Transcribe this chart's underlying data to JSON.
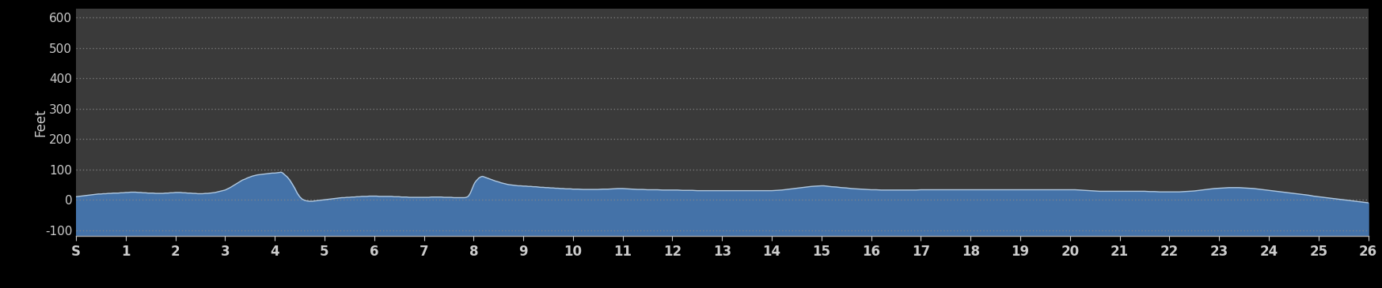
{
  "background_color": "#000000",
  "plot_bg_color": "#3a3a3a",
  "fill_color": "#4472a8",
  "line_color": "#b0c8e0",
  "ylabel": "Feet",
  "xlabel_ticks": [
    "S",
    "1",
    "2",
    "3",
    "4",
    "5",
    "6",
    "7",
    "8",
    "9",
    "10",
    "11",
    "12",
    "13",
    "14",
    "15",
    "16",
    "17",
    "18",
    "19",
    "20",
    "21",
    "22",
    "23",
    "24",
    "25",
    "26"
  ],
  "yticks": [
    -100,
    0,
    100,
    200,
    300,
    400,
    500,
    600
  ],
  "ylim": [
    -120,
    630
  ],
  "xlim": [
    0,
    26
  ],
  "grid_color": "#888888",
  "tick_color": "#cccccc",
  "spine_color": "#aaaaaa",
  "elevation_profile": [
    [
      0.0,
      10
    ],
    [
      0.05,
      11
    ],
    [
      0.1,
      12
    ],
    [
      0.15,
      13
    ],
    [
      0.2,
      14
    ],
    [
      0.25,
      15
    ],
    [
      0.3,
      16
    ],
    [
      0.35,
      17
    ],
    [
      0.4,
      18
    ],
    [
      0.45,
      19
    ],
    [
      0.5,
      19
    ],
    [
      0.55,
      20
    ],
    [
      0.6,
      20
    ],
    [
      0.65,
      21
    ],
    [
      0.7,
      21
    ],
    [
      0.75,
      22
    ],
    [
      0.8,
      22
    ],
    [
      0.85,
      22
    ],
    [
      0.9,
      23
    ],
    [
      0.95,
      23
    ],
    [
      1.0,
      24
    ],
    [
      1.05,
      24
    ],
    [
      1.1,
      25
    ],
    [
      1.15,
      25
    ],
    [
      1.2,
      25
    ],
    [
      1.25,
      24
    ],
    [
      1.3,
      24
    ],
    [
      1.35,
      23
    ],
    [
      1.4,
      23
    ],
    [
      1.45,
      22
    ],
    [
      1.5,
      22
    ],
    [
      1.55,
      22
    ],
    [
      1.6,
      21
    ],
    [
      1.65,
      21
    ],
    [
      1.7,
      21
    ],
    [
      1.75,
      21
    ],
    [
      1.8,
      22
    ],
    [
      1.85,
      22
    ],
    [
      1.9,
      23
    ],
    [
      1.95,
      23
    ],
    [
      2.0,
      24
    ],
    [
      2.05,
      24
    ],
    [
      2.1,
      24
    ],
    [
      2.15,
      23
    ],
    [
      2.2,
      23
    ],
    [
      2.25,
      22
    ],
    [
      2.3,
      22
    ],
    [
      2.35,
      21
    ],
    [
      2.4,
      21
    ],
    [
      2.45,
      20
    ],
    [
      2.5,
      20
    ],
    [
      2.55,
      20
    ],
    [
      2.6,
      21
    ],
    [
      2.65,
      21
    ],
    [
      2.7,
      22
    ],
    [
      2.75,
      23
    ],
    [
      2.8,
      24
    ],
    [
      2.85,
      26
    ],
    [
      2.9,
      28
    ],
    [
      2.95,
      30
    ],
    [
      3.0,
      32
    ],
    [
      3.05,
      36
    ],
    [
      3.1,
      40
    ],
    [
      3.15,
      45
    ],
    [
      3.2,
      50
    ],
    [
      3.25,
      55
    ],
    [
      3.3,
      60
    ],
    [
      3.35,
      65
    ],
    [
      3.4,
      68
    ],
    [
      3.45,
      72
    ],
    [
      3.5,
      75
    ],
    [
      3.55,
      78
    ],
    [
      3.6,
      80
    ],
    [
      3.65,
      82
    ],
    [
      3.7,
      83
    ],
    [
      3.75,
      84
    ],
    [
      3.8,
      85
    ],
    [
      3.85,
      86
    ],
    [
      3.9,
      87
    ],
    [
      3.95,
      88
    ],
    [
      4.0,
      88
    ],
    [
      4.05,
      89
    ],
    [
      4.1,
      90
    ],
    [
      4.12,
      91
    ],
    [
      4.14,
      90
    ],
    [
      4.16,
      88
    ],
    [
      4.18,
      85
    ],
    [
      4.2,
      82
    ],
    [
      4.25,
      75
    ],
    [
      4.3,
      65
    ],
    [
      4.35,
      52
    ],
    [
      4.4,
      38
    ],
    [
      4.45,
      22
    ],
    [
      4.5,
      10
    ],
    [
      4.55,
      2
    ],
    [
      4.6,
      -2
    ],
    [
      4.65,
      -4
    ],
    [
      4.7,
      -5
    ],
    [
      4.75,
      -5
    ],
    [
      4.8,
      -4
    ],
    [
      4.85,
      -3
    ],
    [
      4.9,
      -2
    ],
    [
      4.95,
      -1
    ],
    [
      5.0,
      0
    ],
    [
      5.05,
      1
    ],
    [
      5.1,
      2
    ],
    [
      5.15,
      3
    ],
    [
      5.2,
      4
    ],
    [
      5.25,
      5
    ],
    [
      5.3,
      6
    ],
    [
      5.35,
      7
    ],
    [
      5.4,
      7
    ],
    [
      5.45,
      8
    ],
    [
      5.5,
      8
    ],
    [
      5.55,
      9
    ],
    [
      5.6,
      9
    ],
    [
      5.65,
      10
    ],
    [
      5.7,
      10
    ],
    [
      5.75,
      11
    ],
    [
      5.8,
      11
    ],
    [
      5.85,
      11
    ],
    [
      5.9,
      12
    ],
    [
      5.95,
      12
    ],
    [
      6.0,
      12
    ],
    [
      6.05,
      12
    ],
    [
      6.1,
      11
    ],
    [
      6.15,
      11
    ],
    [
      6.2,
      11
    ],
    [
      6.25,
      11
    ],
    [
      6.3,
      11
    ],
    [
      6.35,
      11
    ],
    [
      6.4,
      10
    ],
    [
      6.45,
      10
    ],
    [
      6.5,
      10
    ],
    [
      6.55,
      9
    ],
    [
      6.6,
      9
    ],
    [
      6.65,
      9
    ],
    [
      6.7,
      8
    ],
    [
      6.75,
      8
    ],
    [
      6.8,
      8
    ],
    [
      6.85,
      8
    ],
    [
      6.9,
      8
    ],
    [
      6.95,
      8
    ],
    [
      7.0,
      8
    ],
    [
      7.05,
      8
    ],
    [
      7.1,
      8
    ],
    [
      7.15,
      9
    ],
    [
      7.2,
      9
    ],
    [
      7.25,
      9
    ],
    [
      7.3,
      9
    ],
    [
      7.35,
      9
    ],
    [
      7.4,
      8
    ],
    [
      7.45,
      8
    ],
    [
      7.5,
      8
    ],
    [
      7.55,
      8
    ],
    [
      7.6,
      7
    ],
    [
      7.65,
      7
    ],
    [
      7.7,
      7
    ],
    [
      7.75,
      7
    ],
    [
      7.8,
      7
    ],
    [
      7.82,
      7
    ],
    [
      7.85,
      8
    ],
    [
      7.88,
      10
    ],
    [
      7.9,
      13
    ],
    [
      7.92,
      18
    ],
    [
      7.94,
      24
    ],
    [
      7.96,
      32
    ],
    [
      7.98,
      40
    ],
    [
      8.0,
      48
    ],
    [
      8.02,
      55
    ],
    [
      8.05,
      62
    ],
    [
      8.08,
      67
    ],
    [
      8.1,
      71
    ],
    [
      8.13,
      74
    ],
    [
      8.15,
      76
    ],
    [
      8.18,
      77
    ],
    [
      8.2,
      76
    ],
    [
      8.25,
      73
    ],
    [
      8.3,
      70
    ],
    [
      8.35,
      67
    ],
    [
      8.4,
      64
    ],
    [
      8.45,
      61
    ],
    [
      8.5,
      59
    ],
    [
      8.55,
      56
    ],
    [
      8.6,
      54
    ],
    [
      8.65,
      52
    ],
    [
      8.7,
      50
    ],
    [
      8.75,
      49
    ],
    [
      8.8,
      48
    ],
    [
      8.85,
      47
    ],
    [
      8.9,
      46
    ],
    [
      8.95,
      46
    ],
    [
      9.0,
      45
    ],
    [
      9.05,
      45
    ],
    [
      9.1,
      44
    ],
    [
      9.15,
      44
    ],
    [
      9.2,
      43
    ],
    [
      9.25,
      43
    ],
    [
      9.3,
      42
    ],
    [
      9.35,
      41
    ],
    [
      9.4,
      41
    ],
    [
      9.45,
      40
    ],
    [
      9.5,
      40
    ],
    [
      9.55,
      39
    ],
    [
      9.6,
      39
    ],
    [
      9.65,
      38
    ],
    [
      9.7,
      38
    ],
    [
      9.75,
      37
    ],
    [
      9.8,
      37
    ],
    [
      9.85,
      36
    ],
    [
      9.9,
      36
    ],
    [
      9.95,
      36
    ],
    [
      10.0,
      35
    ],
    [
      10.1,
      35
    ],
    [
      10.2,
      34
    ],
    [
      10.3,
      34
    ],
    [
      10.4,
      34
    ],
    [
      10.5,
      34
    ],
    [
      10.6,
      35
    ],
    [
      10.7,
      35
    ],
    [
      10.8,
      36
    ],
    [
      10.9,
      37
    ],
    [
      11.0,
      37
    ],
    [
      11.1,
      36
    ],
    [
      11.2,
      35
    ],
    [
      11.3,
      34
    ],
    [
      11.4,
      34
    ],
    [
      11.5,
      33
    ],
    [
      11.6,
      33
    ],
    [
      11.7,
      33
    ],
    [
      11.8,
      32
    ],
    [
      11.9,
      32
    ],
    [
      12.0,
      32
    ],
    [
      12.1,
      32
    ],
    [
      12.2,
      31
    ],
    [
      12.3,
      31
    ],
    [
      12.4,
      31
    ],
    [
      12.5,
      30
    ],
    [
      12.6,
      30
    ],
    [
      12.7,
      30
    ],
    [
      12.8,
      30
    ],
    [
      12.9,
      30
    ],
    [
      13.0,
      30
    ],
    [
      13.1,
      30
    ],
    [
      13.2,
      30
    ],
    [
      13.3,
      30
    ],
    [
      13.4,
      30
    ],
    [
      13.5,
      30
    ],
    [
      13.6,
      30
    ],
    [
      13.7,
      30
    ],
    [
      13.8,
      30
    ],
    [
      13.9,
      30
    ],
    [
      14.0,
      30
    ],
    [
      14.1,
      31
    ],
    [
      14.2,
      32
    ],
    [
      14.3,
      34
    ],
    [
      14.4,
      36
    ],
    [
      14.5,
      38
    ],
    [
      14.6,
      40
    ],
    [
      14.7,
      42
    ],
    [
      14.8,
      44
    ],
    [
      14.9,
      45
    ],
    [
      15.0,
      46
    ],
    [
      15.05,
      46
    ],
    [
      15.1,
      45
    ],
    [
      15.15,
      44
    ],
    [
      15.2,
      43
    ],
    [
      15.3,
      42
    ],
    [
      15.4,
      40
    ],
    [
      15.5,
      39
    ],
    [
      15.6,
      37
    ],
    [
      15.7,
      36
    ],
    [
      15.8,
      35
    ],
    [
      15.9,
      34
    ],
    [
      16.0,
      33
    ],
    [
      16.1,
      33
    ],
    [
      16.2,
      32
    ],
    [
      16.3,
      32
    ],
    [
      16.4,
      32
    ],
    [
      16.5,
      32
    ],
    [
      16.6,
      32
    ],
    [
      16.7,
      32
    ],
    [
      16.8,
      32
    ],
    [
      16.9,
      32
    ],
    [
      17.0,
      33
    ],
    [
      17.1,
      33
    ],
    [
      17.2,
      33
    ],
    [
      17.3,
      33
    ],
    [
      17.4,
      33
    ],
    [
      17.5,
      33
    ],
    [
      17.6,
      33
    ],
    [
      17.7,
      33
    ],
    [
      17.8,
      33
    ],
    [
      17.9,
      33
    ],
    [
      18.0,
      33
    ],
    [
      18.1,
      33
    ],
    [
      18.2,
      33
    ],
    [
      18.3,
      33
    ],
    [
      18.4,
      33
    ],
    [
      18.5,
      33
    ],
    [
      18.6,
      33
    ],
    [
      18.7,
      33
    ],
    [
      18.8,
      33
    ],
    [
      18.9,
      33
    ],
    [
      19.0,
      33
    ],
    [
      19.1,
      33
    ],
    [
      19.2,
      33
    ],
    [
      19.3,
      33
    ],
    [
      19.4,
      33
    ],
    [
      19.5,
      33
    ],
    [
      19.6,
      33
    ],
    [
      19.7,
      33
    ],
    [
      19.8,
      33
    ],
    [
      19.9,
      33
    ],
    [
      20.0,
      33
    ],
    [
      20.1,
      33
    ],
    [
      20.2,
      32
    ],
    [
      20.3,
      31
    ],
    [
      20.4,
      30
    ],
    [
      20.5,
      29
    ],
    [
      20.6,
      28
    ],
    [
      20.7,
      28
    ],
    [
      20.8,
      28
    ],
    [
      20.9,
      28
    ],
    [
      21.0,
      28
    ],
    [
      21.1,
      28
    ],
    [
      21.2,
      28
    ],
    [
      21.3,
      28
    ],
    [
      21.4,
      28
    ],
    [
      21.5,
      28
    ],
    [
      21.6,
      27
    ],
    [
      21.7,
      27
    ],
    [
      21.8,
      26
    ],
    [
      21.9,
      26
    ],
    [
      22.0,
      26
    ],
    [
      22.1,
      26
    ],
    [
      22.2,
      26
    ],
    [
      22.3,
      27
    ],
    [
      22.4,
      28
    ],
    [
      22.5,
      29
    ],
    [
      22.6,
      31
    ],
    [
      22.7,
      33
    ],
    [
      22.8,
      35
    ],
    [
      22.9,
      37
    ],
    [
      23.0,
      38
    ],
    [
      23.1,
      39
    ],
    [
      23.2,
      40
    ],
    [
      23.3,
      40
    ],
    [
      23.4,
      40
    ],
    [
      23.5,
      39
    ],
    [
      23.6,
      38
    ],
    [
      23.7,
      37
    ],
    [
      23.8,
      35
    ],
    [
      23.9,
      33
    ],
    [
      24.0,
      31
    ],
    [
      24.1,
      29
    ],
    [
      24.2,
      27
    ],
    [
      24.3,
      25
    ],
    [
      24.4,
      23
    ],
    [
      24.5,
      21
    ],
    [
      24.6,
      19
    ],
    [
      24.7,
      17
    ],
    [
      24.8,
      15
    ],
    [
      24.9,
      12
    ],
    [
      25.0,
      10
    ],
    [
      25.1,
      8
    ],
    [
      25.2,
      6
    ],
    [
      25.3,
      4
    ],
    [
      25.4,
      2
    ],
    [
      25.5,
      0
    ],
    [
      25.6,
      -2
    ],
    [
      25.7,
      -4
    ],
    [
      25.8,
      -6
    ],
    [
      25.9,
      -8
    ],
    [
      26.0,
      -10
    ]
  ]
}
